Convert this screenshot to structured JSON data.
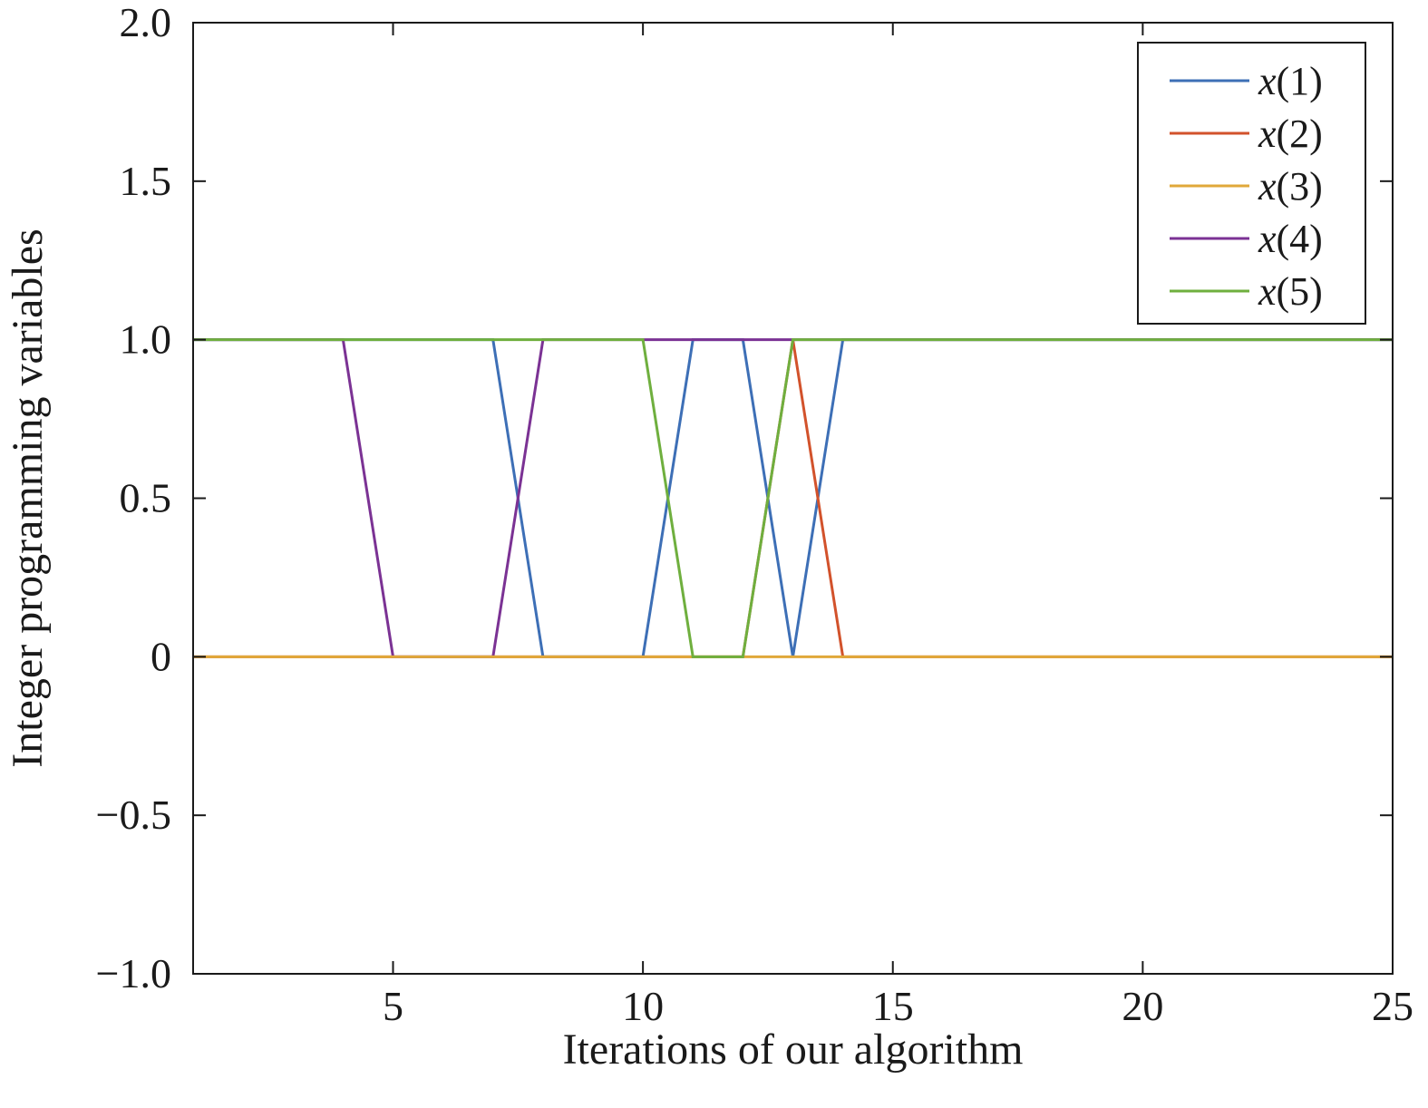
{
  "chart_data": {
    "type": "line",
    "xlabel": "Iterations of our algorithm",
    "ylabel": "Integer programming variables",
    "xlim": [
      1,
      25
    ],
    "ylim": [
      -1.0,
      2.0
    ],
    "xticks": [
      5,
      10,
      15,
      20,
      25
    ],
    "xtick_labels": [
      "5",
      "10",
      "15",
      "20",
      "25"
    ],
    "yticks": [
      -1.0,
      -0.5,
      0,
      0.5,
      1.0,
      1.5,
      2.0
    ],
    "ytick_labels": [
      "−1.0",
      "−0.5",
      "0",
      "0.5",
      "1.0",
      "1.5",
      "2.0"
    ],
    "grid": false,
    "legend_position": "top-right",
    "x": [
      1,
      2,
      3,
      4,
      5,
      6,
      7,
      8,
      9,
      10,
      11,
      12,
      13,
      14,
      15,
      16,
      17,
      18,
      19,
      20,
      21,
      22,
      23,
      24,
      25
    ],
    "series": [
      {
        "name": "x(1)",
        "var": "x",
        "index": "(1)",
        "color": "#3D6FB6",
        "values": [
          1,
          1,
          1,
          1,
          1,
          1,
          1,
          0,
          0,
          0,
          1,
          1,
          0,
          1,
          1,
          1,
          1,
          1,
          1,
          1,
          1,
          1,
          1,
          1,
          1
        ]
      },
      {
        "name": "x(2)",
        "var": "x",
        "index": "(2)",
        "color": "#D2522B",
        "values": [
          0,
          0,
          0,
          0,
          0,
          0,
          0,
          0,
          0,
          0,
          0,
          0,
          1,
          0,
          0,
          0,
          0,
          0,
          0,
          0,
          0,
          0,
          0,
          0,
          0
        ]
      },
      {
        "name": "x(3)",
        "var": "x",
        "index": "(3)",
        "color": "#E0A83A",
        "values": [
          0,
          0,
          0,
          0,
          0,
          0,
          0,
          0,
          0,
          0,
          0,
          0,
          0,
          0,
          0,
          0,
          0,
          0,
          0,
          0,
          0,
          0,
          0,
          0,
          0
        ]
      },
      {
        "name": "x(4)",
        "var": "x",
        "index": "(4)",
        "color": "#7B3294",
        "values": [
          1,
          1,
          1,
          1,
          0,
          0,
          0,
          1,
          1,
          1,
          1,
          1,
          1,
          1,
          1,
          1,
          1,
          1,
          1,
          1,
          1,
          1,
          1,
          1,
          1
        ]
      },
      {
        "name": "x(5)",
        "var": "x",
        "index": "(5)",
        "color": "#6FAF3E",
        "values": [
          1,
          1,
          1,
          1,
          1,
          1,
          1,
          1,
          1,
          1,
          0,
          0,
          1,
          1,
          1,
          1,
          1,
          1,
          1,
          1,
          1,
          1,
          1,
          1,
          1
        ]
      }
    ]
  }
}
